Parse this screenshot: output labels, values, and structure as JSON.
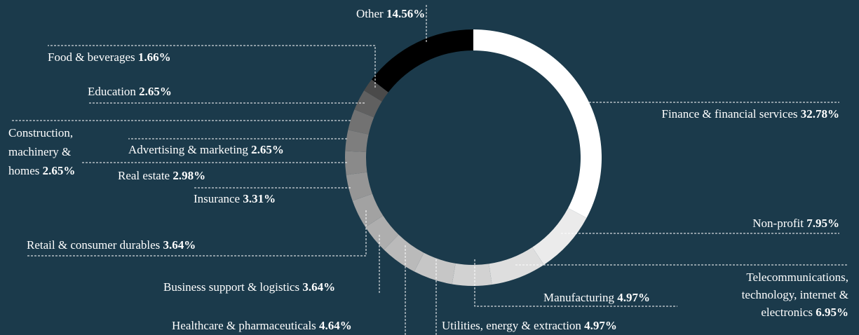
{
  "chart_data": {
    "type": "donut",
    "categories": [
      "Finance & financial services",
      "Non-profit",
      "Telecommunications, technology, internet & electronics",
      "Manufacturing",
      "Utilities, energy & extraction",
      "Healthcare & pharmaceuticals",
      "Business support & logistics",
      "Retail & consumer durables",
      "Insurance",
      "Real estate",
      "Advertising & marketing",
      "Construction, machinery & homes",
      "Education",
      "Food & beverages",
      "Other"
    ],
    "values": [
      32.78,
      7.95,
      6.95,
      4.97,
      4.97,
      4.64,
      3.64,
      3.64,
      3.31,
      2.98,
      2.65,
      2.65,
      2.65,
      1.66,
      14.56
    ],
    "value_labels": [
      "32.78%",
      "7.95%",
      "6.95%",
      "4.97%",
      "4.97%",
      "4.64%",
      "3.64%",
      "3.64%",
      "3.31%",
      "2.98%",
      "2.65%",
      "2.65%",
      "2.65%",
      "1.66%",
      "14.56%"
    ],
    "colors": [
      "#ffffff",
      "#ebebeb",
      "#dedede",
      "#d2d2d2",
      "#c6c6c6",
      "#bababa",
      "#aeaeae",
      "#a2a2a2",
      "#969696",
      "#8a8a8a",
      "#7e7e7e",
      "#727272",
      "#606060",
      "#4a4a4a",
      "#000000"
    ]
  }
}
